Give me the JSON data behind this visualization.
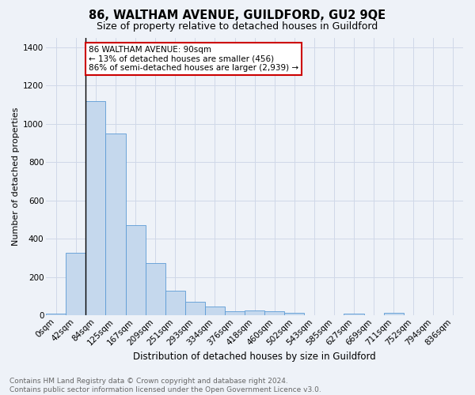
{
  "title": "86, WALTHAM AVENUE, GUILDFORD, GU2 9QE",
  "subtitle": "Size of property relative to detached houses in Guildford",
  "xlabel": "Distribution of detached houses by size in Guildford",
  "ylabel": "Number of detached properties",
  "footnote": "Contains HM Land Registry data © Crown copyright and database right 2024.\nContains public sector information licensed under the Open Government Licence v3.0.",
  "bar_labels": [
    "0sqm",
    "42sqm",
    "84sqm",
    "125sqm",
    "167sqm",
    "209sqm",
    "251sqm",
    "293sqm",
    "334sqm",
    "376sqm",
    "418sqm",
    "460sqm",
    "502sqm",
    "543sqm",
    "585sqm",
    "627sqm",
    "669sqm",
    "711sqm",
    "752sqm",
    "794sqm",
    "836sqm"
  ],
  "bar_heights": [
    10,
    325,
    1120,
    950,
    470,
    275,
    130,
    70,
    45,
    20,
    25,
    22,
    15,
    0,
    0,
    10,
    0,
    15,
    0,
    0,
    0
  ],
  "bar_color": "#c5d8ed",
  "bar_edge_color": "#5b9bd5",
  "grid_color": "#d0d8e8",
  "background_color": "#eef2f8",
  "annotation_text": "86 WALTHAM AVENUE: 90sqm\n← 13% of detached houses are smaller (456)\n86% of semi-detached houses are larger (2,939) →",
  "annotation_box_color": "white",
  "annotation_box_edge": "#cc0000",
  "vline_x_idx": 2,
  "ylim": [
    0,
    1450
  ],
  "yticks": [
    0,
    200,
    400,
    600,
    800,
    1000,
    1200,
    1400
  ],
  "title_fontsize": 10.5,
  "subtitle_fontsize": 9,
  "footnote_fontsize": 6.5,
  "ylabel_fontsize": 8,
  "xlabel_fontsize": 8.5,
  "tick_fontsize": 7.5
}
